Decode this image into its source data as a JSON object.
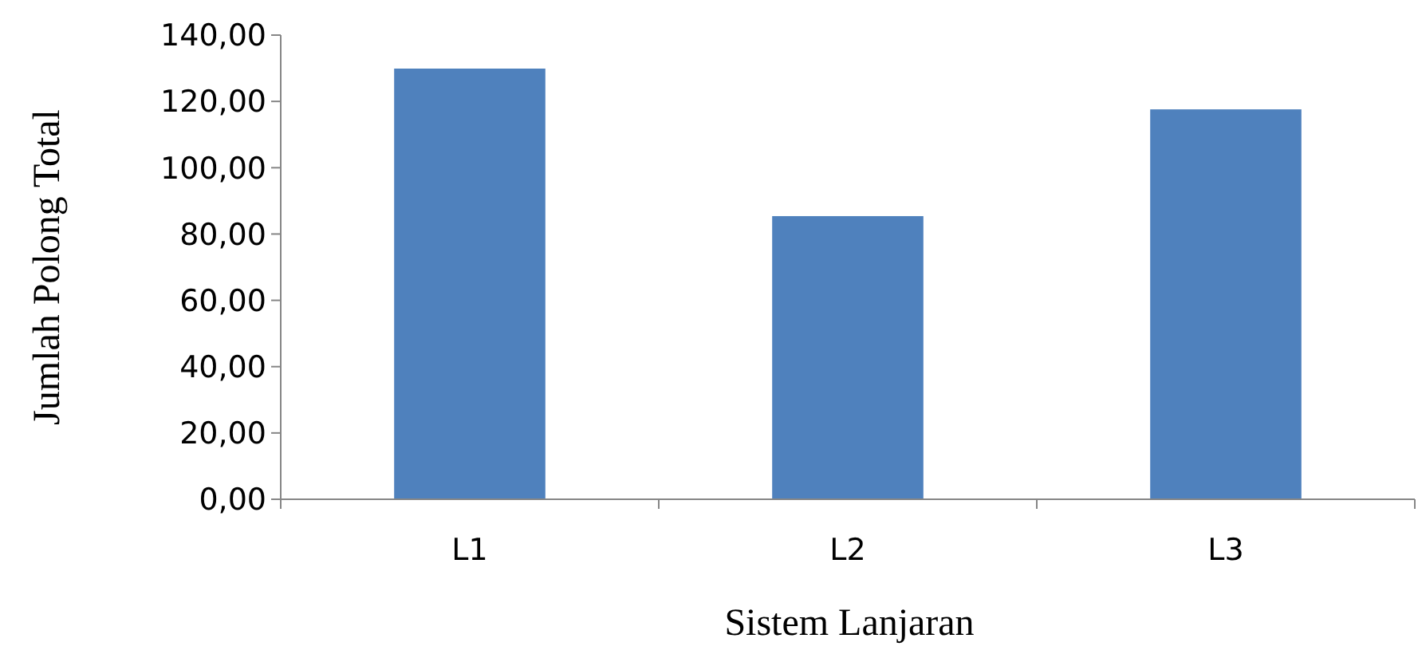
{
  "chart_data": {
    "type": "bar",
    "xlabel": "Sistem Lanjaran",
    "ylabel": "Jumlah Polong Total",
    "categories": [
      "L1",
      "L2",
      "L3"
    ],
    "values": [
      129.9,
      85.4,
      117.6
    ],
    "color": "#4f81bd",
    "ylim": [
      0,
      140
    ],
    "yticks": [
      {
        "value": 0,
        "label": "0,00"
      },
      {
        "value": 20,
        "label": "20,00"
      },
      {
        "value": 40,
        "label": "40,00"
      },
      {
        "value": 60,
        "label": "60,00"
      },
      {
        "value": 80,
        "label": "80,00"
      },
      {
        "value": 100,
        "label": "100,00"
      },
      {
        "value": 120,
        "label": "120,00"
      },
      {
        "value": 140,
        "label": "140,00"
      }
    ],
    "grid": false
  }
}
